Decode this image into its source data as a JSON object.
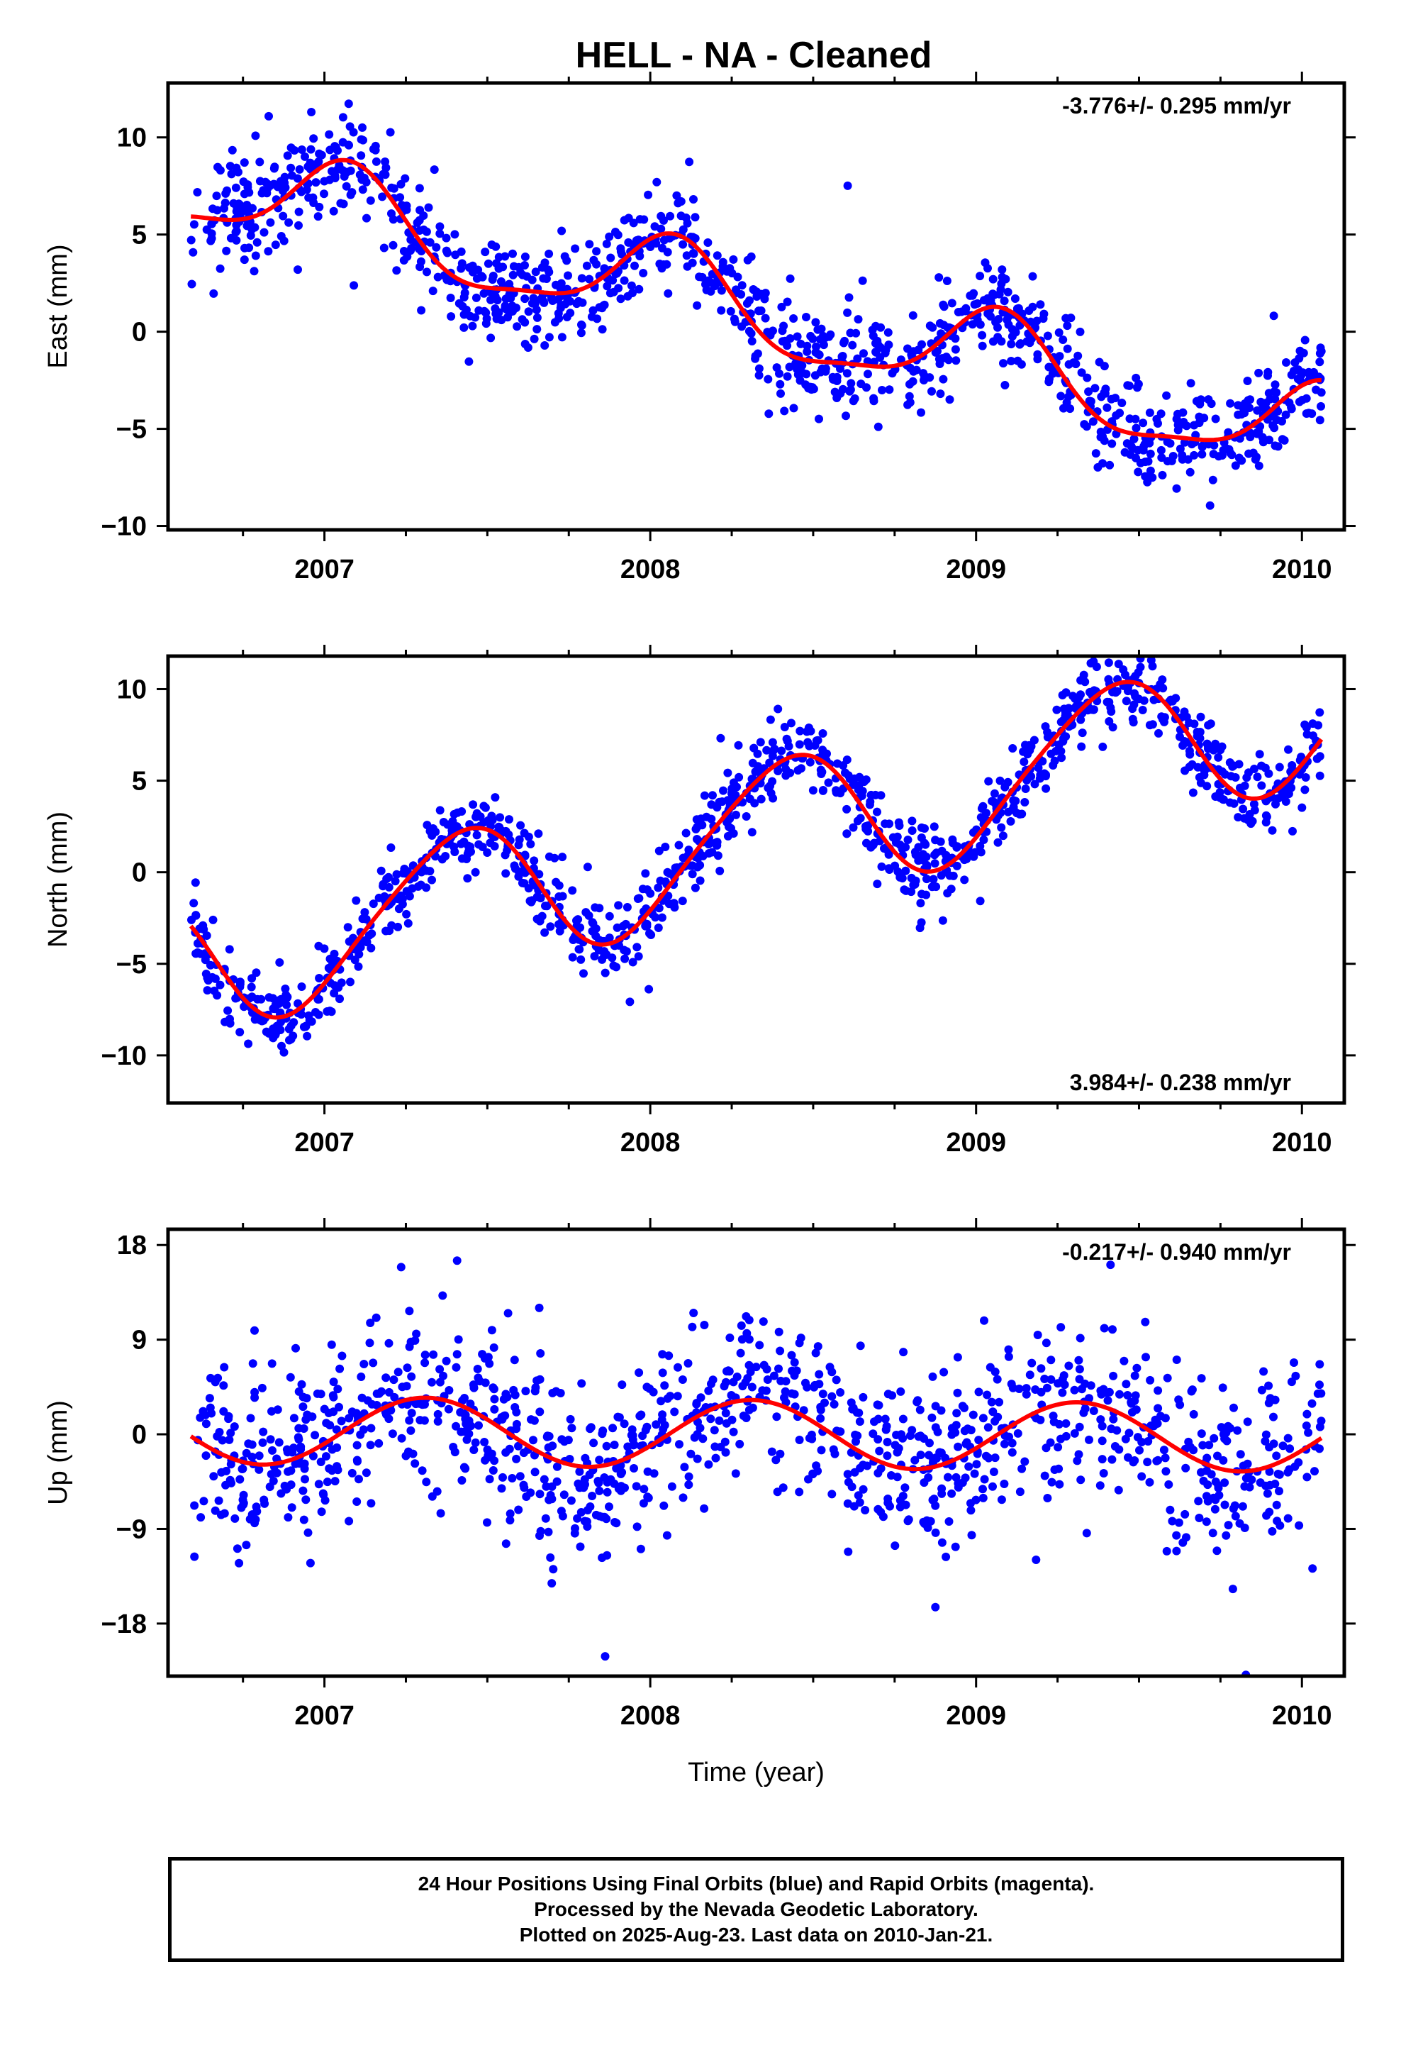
{
  "title": "HELL  - NA - Cleaned",
  "footer": {
    "line1": "24 Hour Positions Using Final Orbits (blue) and Rapid Orbits (magenta).",
    "line2": "Processed by the Nevada Geodetic Laboratory.",
    "line3": "Plotted on 2025-Aug-23. Last data on 2010-Jan-21."
  },
  "colors": {
    "points": "#0000ff",
    "fit": "#ff0000",
    "axes": "#000000"
  },
  "chart_data": [
    {
      "type": "scatter",
      "title": "HELL  - NA - Cleaned",
      "xlabel": "",
      "ylabel": "East (mm)",
      "rate_label": "-3.776+/- 0.295 mm/yr",
      "rate_position": "top-right",
      "xlim": [
        2006.52,
        2010.13
      ],
      "ylim": [
        -10.2,
        12.8
      ],
      "xticks": [
        2007,
        2008,
        2009,
        2010
      ],
      "xtick_labels": [
        "2007",
        "2008",
        "2009",
        "2010"
      ],
      "yticks": [
        -10,
        -5,
        0,
        5,
        10
      ],
      "ytick_labels": [
        "−10",
        "−5",
        "0",
        "5",
        "10"
      ],
      "trend": {
        "start": 2006.59,
        "end": 2010.06,
        "intercept": 7.6,
        "rate": -3.776,
        "annual_sin": 0.9,
        "annual_cos": 2.2,
        "semi_sin": 0.6,
        "semi_cos": 0.3
      },
      "noise": 1.35,
      "n_points": 1150,
      "seed": 11,
      "series": [
        {
          "kind": "points",
          "color": "#0000ff"
        },
        {
          "kind": "fit",
          "color": "#ff0000"
        }
      ]
    },
    {
      "type": "scatter",
      "xlabel": "",
      "ylabel": "North (mm)",
      "rate_label": "3.984+/- 0.238 mm/yr",
      "rate_position": "bottom-right",
      "xlim": [
        2006.52,
        2010.13
      ],
      "ylim": [
        -12.6,
        11.8
      ],
      "xticks": [
        2007,
        2008,
        2009,
        2010
      ],
      "xtick_labels": [
        "2007",
        "2008",
        "2009",
        "2010"
      ],
      "yticks": [
        -10,
        -5,
        0,
        5,
        10
      ],
      "ytick_labels": [
        "−10",
        "−5",
        "0",
        "5",
        "10"
      ],
      "trend": {
        "start": 2006.59,
        "end": 2010.06,
        "intercept": -4.9,
        "rate": 3.984,
        "annual_sin": 2.2,
        "annual_cos": -3.2,
        "semi_sin": 0.3,
        "semi_cos": 0.4
      },
      "noise": 1.05,
      "n_points": 1150,
      "seed": 23,
      "series": [
        {
          "kind": "points",
          "color": "#0000ff"
        },
        {
          "kind": "fit",
          "color": "#ff0000"
        }
      ]
    },
    {
      "type": "scatter",
      "xlabel": "Time (year)",
      "ylabel": "Up (mm)",
      "rate_label": "-0.217+/- 0.940 mm/yr",
      "rate_position": "top-right",
      "xlim": [
        2006.52,
        2010.13
      ],
      "ylim": [
        -23.0,
        19.5
      ],
      "xticks": [
        2007,
        2008,
        2009,
        2010
      ],
      "xtick_labels": [
        "2007",
        "2008",
        "2009",
        "2010"
      ],
      "yticks": [
        -18,
        -9,
        0,
        9,
        18
      ],
      "ytick_labels": [
        "−18",
        "−9",
        "0",
        "9",
        "18"
      ],
      "trend": {
        "start": 2006.59,
        "end": 2010.06,
        "intercept": 0.4,
        "rate": -0.217,
        "annual_sin": 3.0,
        "annual_cos": -1.2,
        "semi_sin": 0.0,
        "semi_cos": 0.0
      },
      "noise": 4.2,
      "n_points": 1150,
      "seed": 37,
      "series": [
        {
          "kind": "points",
          "color": "#0000ff"
        },
        {
          "kind": "fit",
          "color": "#ff0000"
        }
      ]
    }
  ]
}
